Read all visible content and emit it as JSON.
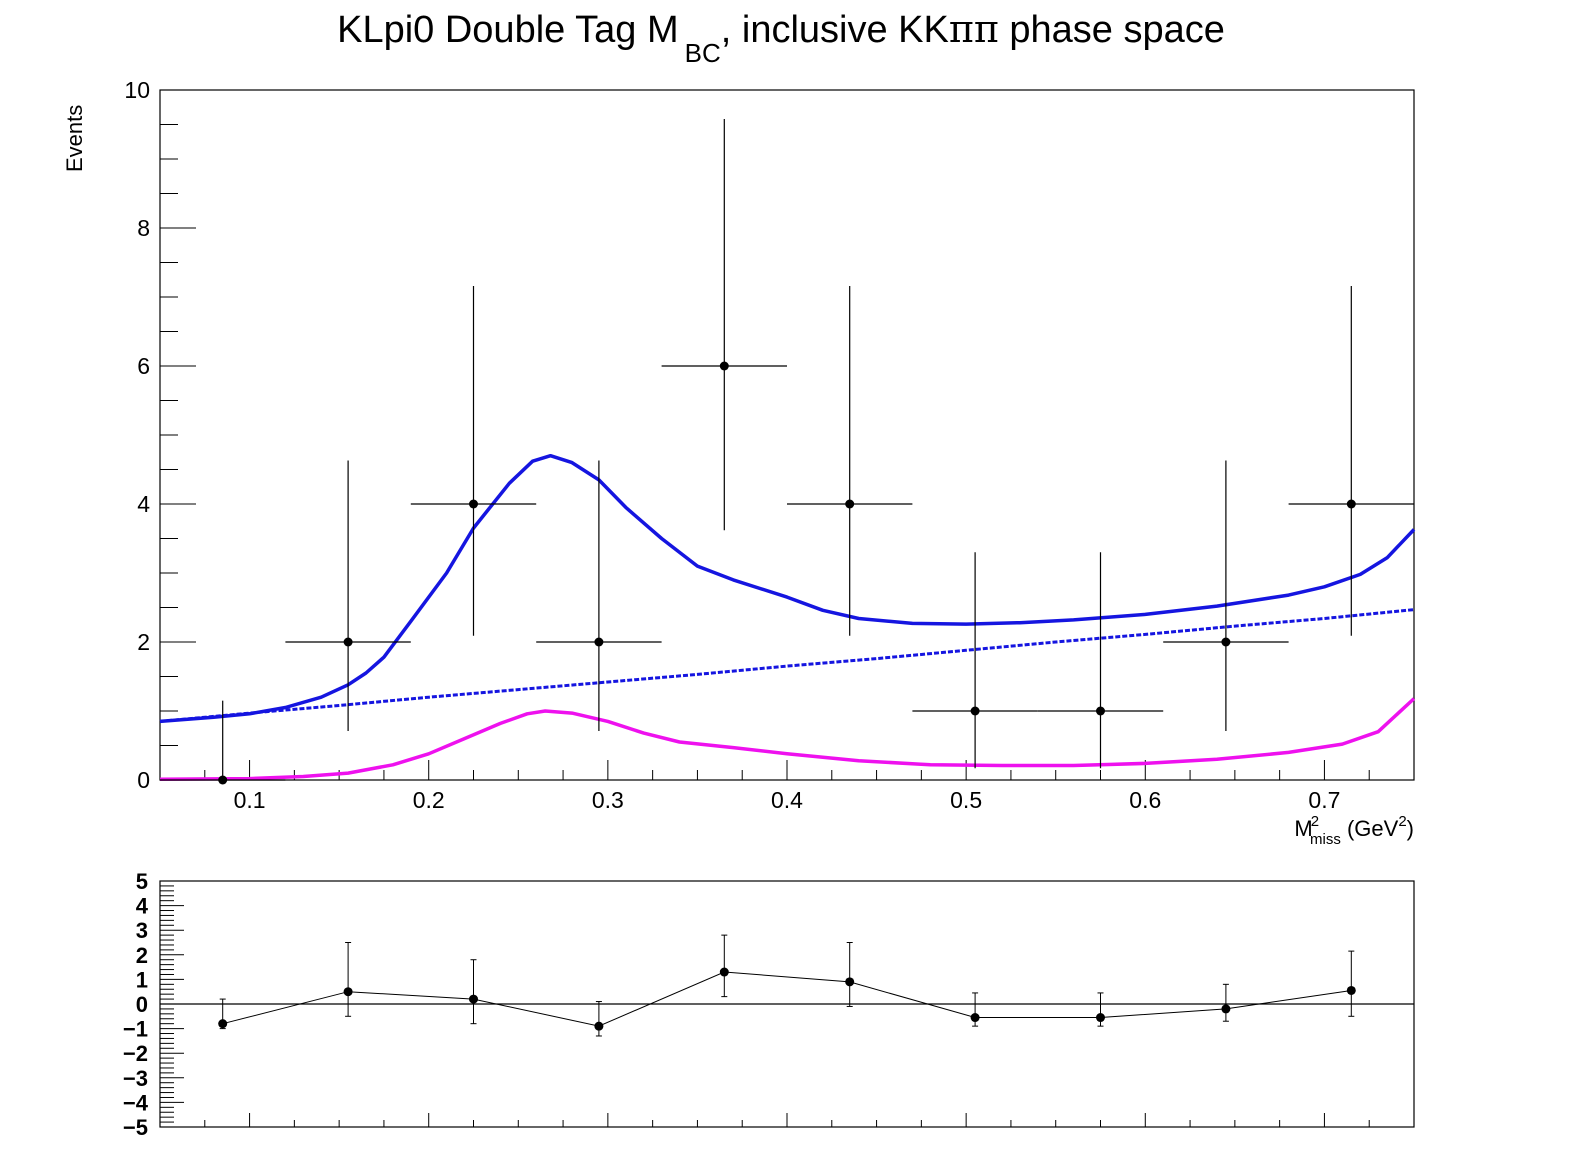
{
  "chart_data": [
    {
      "type": "scatter",
      "title_parts": {
        "main": "KLpi0 Double Tag M",
        "sub": "BC",
        "rest": ", inclusive KK",
        "greek": "ππ",
        "tail": " phase space"
      },
      "xlabel": {
        "base": "M",
        "sup": "2",
        "sub": "miss",
        "unit_open": " (GeV",
        "unit_sup": "2",
        "unit_close": ")"
      },
      "ylabel": "Events",
      "xlim": [
        0.05,
        0.75
      ],
      "ylim": [
        0,
        10
      ],
      "x_ticks": [
        0.1,
        0.2,
        0.3,
        0.4,
        0.5,
        0.6,
        0.7
      ],
      "x_tick_labels": [
        "0.1",
        "0.2",
        "0.3",
        "0.4",
        "0.5",
        "0.6",
        "0.7"
      ],
      "y_ticks": [
        0,
        2,
        4,
        6,
        8,
        10
      ],
      "y_tick_labels": [
        "0",
        "2",
        "4",
        "6",
        "8",
        "10"
      ],
      "data_points": [
        {
          "x": 0.085,
          "y": 0,
          "xerr": 0.035,
          "ylo": 0,
          "yhi": 1.15
        },
        {
          "x": 0.155,
          "y": 2,
          "xerr": 0.035,
          "ylo": 0.71,
          "yhi": 4.63
        },
        {
          "x": 0.225,
          "y": 4,
          "xerr": 0.035,
          "ylo": 2.09,
          "yhi": 7.16
        },
        {
          "x": 0.295,
          "y": 2,
          "xerr": 0.035,
          "ylo": 0.71,
          "yhi": 4.63
        },
        {
          "x": 0.365,
          "y": 6,
          "xerr": 0.035,
          "ylo": 3.62,
          "yhi": 9.58
        },
        {
          "x": 0.435,
          "y": 4,
          "xerr": 0.035,
          "ylo": 2.09,
          "yhi": 7.16
        },
        {
          "x": 0.505,
          "y": 1,
          "xerr": 0.035,
          "ylo": 0.17,
          "yhi": 3.3
        },
        {
          "x": 0.575,
          "y": 1,
          "xerr": 0.035,
          "ylo": 0.17,
          "yhi": 3.3
        },
        {
          "x": 0.645,
          "y": 2,
          "xerr": 0.035,
          "ylo": 0.71,
          "yhi": 4.63
        },
        {
          "x": 0.715,
          "y": 4,
          "xerr": 0.035,
          "ylo": 2.09,
          "yhi": 7.16
        }
      ],
      "curves": [
        {
          "color": "#1515e0",
          "style": "solid",
          "points": [
            [
              0.05,
              0.85
            ],
            [
              0.08,
              0.91
            ],
            [
              0.1,
              0.96
            ],
            [
              0.12,
              1.05
            ],
            [
              0.14,
              1.2
            ],
            [
              0.155,
              1.38
            ],
            [
              0.165,
              1.55
            ],
            [
              0.175,
              1.78
            ],
            [
              0.19,
              2.3
            ],
            [
              0.21,
              3.0
            ],
            [
              0.225,
              3.65
            ],
            [
              0.245,
              4.3
            ],
            [
              0.258,
              4.62
            ],
            [
              0.268,
              4.7
            ],
            [
              0.28,
              4.6
            ],
            [
              0.295,
              4.35
            ],
            [
              0.31,
              3.95
            ],
            [
              0.33,
              3.5
            ],
            [
              0.35,
              3.1
            ],
            [
              0.37,
              2.9
            ],
            [
              0.4,
              2.65
            ],
            [
              0.42,
              2.46
            ],
            [
              0.44,
              2.34
            ],
            [
              0.47,
              2.27
            ],
            [
              0.5,
              2.26
            ],
            [
              0.53,
              2.28
            ],
            [
              0.56,
              2.32
            ],
            [
              0.6,
              2.4
            ],
            [
              0.64,
              2.52
            ],
            [
              0.68,
              2.68
            ],
            [
              0.7,
              2.8
            ],
            [
              0.72,
              2.98
            ],
            [
              0.735,
              3.22
            ],
            [
              0.75,
              3.63
            ]
          ]
        },
        {
          "color": "#1515e0",
          "style": "dashed",
          "points": [
            [
              0.05,
              0.85
            ],
            [
              0.1,
              0.97
            ],
            [
              0.15,
              1.08
            ],
            [
              0.2,
              1.2
            ],
            [
              0.25,
              1.31
            ],
            [
              0.3,
              1.42
            ],
            [
              0.35,
              1.53
            ],
            [
              0.4,
              1.65
            ],
            [
              0.45,
              1.76
            ],
            [
              0.5,
              1.88
            ],
            [
              0.55,
              2.0
            ],
            [
              0.6,
              2.11
            ],
            [
              0.65,
              2.23
            ],
            [
              0.7,
              2.34
            ],
            [
              0.75,
              2.47
            ]
          ]
        },
        {
          "color": "#ee11ee",
          "style": "solid",
          "points": [
            [
              0.05,
              0.01
            ],
            [
              0.1,
              0.02
            ],
            [
              0.13,
              0.05
            ],
            [
              0.155,
              0.1
            ],
            [
              0.18,
              0.22
            ],
            [
              0.2,
              0.38
            ],
            [
              0.22,
              0.6
            ],
            [
              0.24,
              0.82
            ],
            [
              0.255,
              0.96
            ],
            [
              0.265,
              1.0
            ],
            [
              0.28,
              0.97
            ],
            [
              0.3,
              0.85
            ],
            [
              0.32,
              0.68
            ],
            [
              0.34,
              0.55
            ],
            [
              0.37,
              0.47
            ],
            [
              0.4,
              0.38
            ],
            [
              0.44,
              0.28
            ],
            [
              0.48,
              0.22
            ],
            [
              0.52,
              0.21
            ],
            [
              0.56,
              0.21
            ],
            [
              0.6,
              0.24
            ],
            [
              0.64,
              0.3
            ],
            [
              0.68,
              0.4
            ],
            [
              0.71,
              0.52
            ],
            [
              0.73,
              0.7
            ],
            [
              0.75,
              1.18
            ]
          ]
        }
      ]
    },
    {
      "type": "line",
      "xlim": [
        0.05,
        0.75
      ],
      "ylim": [
        -5,
        5
      ],
      "y_ticks": [
        -5,
        -4,
        -3,
        -2,
        -1,
        0,
        1,
        2,
        3,
        4,
        5
      ],
      "y_tick_labels": [
        "5",
        "4",
        "3",
        "2",
        "1",
        "0",
        "1",
        "2",
        "3",
        "4",
        "5"
      ],
      "y_tick_signs": [
        "−",
        "−",
        "−",
        "−",
        "−",
        "",
        "",
        "",
        "",
        "",
        ""
      ],
      "points": [
        {
          "x": 0.085,
          "y": -0.8,
          "ylo": -1.0,
          "yhi": 0.2
        },
        {
          "x": 0.155,
          "y": 0.5,
          "ylo": -0.5,
          "yhi": 2.5
        },
        {
          "x": 0.225,
          "y": 0.2,
          "ylo": -0.8,
          "yhi": 1.8
        },
        {
          "x": 0.295,
          "y": -0.9,
          "ylo": -1.3,
          "yhi": 0.1
        },
        {
          "x": 0.365,
          "y": 1.3,
          "ylo": 0.3,
          "yhi": 2.8
        },
        {
          "x": 0.435,
          "y": 0.9,
          "ylo": -0.1,
          "yhi": 2.5
        },
        {
          "x": 0.505,
          "y": -0.55,
          "ylo": -0.9,
          "yhi": 0.45
        },
        {
          "x": 0.575,
          "y": -0.55,
          "ylo": -0.9,
          "yhi": 0.45
        },
        {
          "x": 0.645,
          "y": -0.2,
          "ylo": -0.7,
          "yhi": 0.8
        },
        {
          "x": 0.715,
          "y": 0.55,
          "ylo": -0.5,
          "yhi": 2.15
        }
      ]
    }
  ]
}
